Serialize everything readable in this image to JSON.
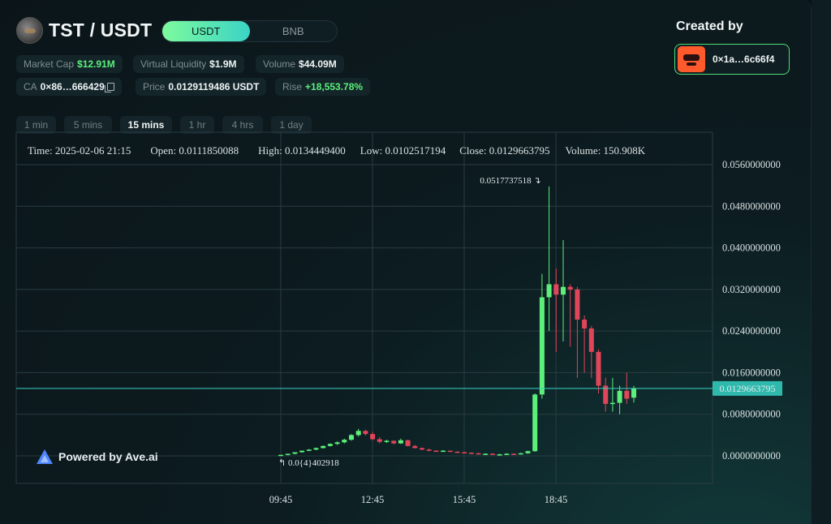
{
  "header": {
    "pair": "TST / USDT",
    "quote_options": [
      "USDT",
      "BNB"
    ],
    "active_quote": "USDT"
  },
  "stats": {
    "market_cap_label": "Market Cap",
    "market_cap": "$12.91M",
    "virtual_liquidity_label": "Virtual Liquidity",
    "virtual_liquidity": "$1.9M",
    "volume_label": "Volume",
    "volume": "$44.09M",
    "ca_label": "CA",
    "ca": "0×86…666429",
    "price_label": "Price",
    "price": "0.0129119486 USDT",
    "rise_label": "Rise",
    "rise": "+18,553.78%"
  },
  "creator": {
    "title": "Created by",
    "address": "0×1a…6c66f4"
  },
  "timeframes": [
    "1 min",
    "5 mins",
    "15 mins",
    "1 hr",
    "4 hrs",
    "1 day"
  ],
  "active_timeframe": "15 mins",
  "ohlc": {
    "time": "Time: 2025-02-06 21:15",
    "open": "Open: 0.0111850088",
    "high": "High: 0.0134449400",
    "low": "Low: 0.0102517194",
    "close": "Close: 0.0129663795",
    "volume": "Volume: 150.908K"
  },
  "powered_by": "Powered by Ave.ai",
  "colors": {
    "up": "#5cf07a",
    "down": "#e0455a",
    "accent": "#3bd3c6"
  },
  "chart_data": {
    "type": "candlestick",
    "interval": "15 mins",
    "y_ticks": [
      "0.0560000000",
      "0.0480000000",
      "0.0400000000",
      "0.0320000000",
      "0.0240000000",
      "0.0160000000",
      "0.0080000000",
      "0.0000000000"
    ],
    "ylim": [
      0,
      0.056
    ],
    "x_ticks": [
      "09:45",
      "12:45",
      "15:45",
      "18:45"
    ],
    "last_price_label": "0.0129663795",
    "last_price": 0.0129663795,
    "max_label": "0.0517737518",
    "max_value": 0.0517737518,
    "min_label": "0.0{4}402918",
    "min_value": 4.02918e-05,
    "candles": [
      {
        "o": 4e-05,
        "h": 0.0002,
        "l": 4e-05,
        "c": 0.0002
      },
      {
        "o": 0.0002,
        "h": 0.0004,
        "l": 0.0001,
        "c": 0.0004
      },
      {
        "o": 0.0004,
        "h": 0.0007,
        "l": 0.0003,
        "c": 0.0007
      },
      {
        "o": 0.0007,
        "h": 0.001,
        "l": 0.0006,
        "c": 0.001
      },
      {
        "o": 0.001,
        "h": 0.0013,
        "l": 0.0009,
        "c": 0.0012
      },
      {
        "o": 0.0012,
        "h": 0.0016,
        "l": 0.0011,
        "c": 0.0015
      },
      {
        "o": 0.0015,
        "h": 0.002,
        "l": 0.0014,
        "c": 0.0019
      },
      {
        "o": 0.0019,
        "h": 0.0024,
        "l": 0.0018,
        "c": 0.0023
      },
      {
        "o": 0.0023,
        "h": 0.0028,
        "l": 0.0021,
        "c": 0.0026
      },
      {
        "o": 0.0026,
        "h": 0.0033,
        "l": 0.0024,
        "c": 0.0031
      },
      {
        "o": 0.0031,
        "h": 0.0042,
        "l": 0.0029,
        "c": 0.004
      },
      {
        "o": 0.004,
        "h": 0.0052,
        "l": 0.0037,
        "c": 0.0048
      },
      {
        "o": 0.0048,
        "h": 0.005,
        "l": 0.0039,
        "c": 0.0042
      },
      {
        "o": 0.0042,
        "h": 0.0046,
        "l": 0.003,
        "c": 0.0032
      },
      {
        "o": 0.0032,
        "h": 0.0036,
        "l": 0.0024,
        "c": 0.0027
      },
      {
        "o": 0.0027,
        "h": 0.0031,
        "l": 0.0025,
        "c": 0.0029
      },
      {
        "o": 0.0029,
        "h": 0.003,
        "l": 0.0022,
        "c": 0.0024
      },
      {
        "o": 0.0024,
        "h": 0.0033,
        "l": 0.0023,
        "c": 0.003
      },
      {
        "o": 0.003,
        "h": 0.0031,
        "l": 0.0018,
        "c": 0.0019
      },
      {
        "o": 0.0019,
        "h": 0.0021,
        "l": 0.0014,
        "c": 0.0015
      },
      {
        "o": 0.0015,
        "h": 0.0016,
        "l": 0.0011,
        "c": 0.0012
      },
      {
        "o": 0.0012,
        "h": 0.0014,
        "l": 0.0009,
        "c": 0.001
      },
      {
        "o": 0.001,
        "h": 0.0011,
        "l": 0.0008,
        "c": 0.0009
      },
      {
        "o": 0.0009,
        "h": 0.0011,
        "l": 0.0008,
        "c": 0.001
      },
      {
        "o": 0.001,
        "h": 0.001,
        "l": 0.0007,
        "c": 0.0008
      },
      {
        "o": 0.0008,
        "h": 0.0009,
        "l": 0.0006,
        "c": 0.0007
      },
      {
        "o": 0.0007,
        "h": 0.0008,
        "l": 0.0005,
        "c": 0.0006
      },
      {
        "o": 0.0006,
        "h": 0.0007,
        "l": 0.0004,
        "c": 0.0005
      },
      {
        "o": 0.0005,
        "h": 0.0006,
        "l": 0.0003,
        "c": 0.0004
      },
      {
        "o": 0.0004,
        "h": 0.0005,
        "l": 0.0003,
        "c": 0.0004
      },
      {
        "o": 0.0004,
        "h": 0.0005,
        "l": 0.0002,
        "c": 0.0003
      },
      {
        "o": 0.0003,
        "h": 0.0004,
        "l": 0.0002,
        "c": 0.0003
      },
      {
        "o": 0.0003,
        "h": 0.0005,
        "l": 0.0002,
        "c": 0.0004
      },
      {
        "o": 0.0004,
        "h": 0.0005,
        "l": 0.0002,
        "c": 0.0003
      },
      {
        "o": 0.0003,
        "h": 0.0006,
        "l": 0.0003,
        "c": 0.0005
      },
      {
        "o": 0.0005,
        "h": 0.001,
        "l": 0.0004,
        "c": 0.0009
      },
      {
        "o": 0.0009,
        "h": 0.012,
        "l": 0.0008,
        "c": 0.0118
      },
      {
        "o": 0.0118,
        "h": 0.035,
        "l": 0.011,
        "c": 0.0305
      },
      {
        "o": 0.0305,
        "h": 0.0518,
        "l": 0.024,
        "c": 0.033
      },
      {
        "o": 0.033,
        "h": 0.036,
        "l": 0.02,
        "c": 0.031
      },
      {
        "o": 0.031,
        "h": 0.0415,
        "l": 0.022,
        "c": 0.0325
      },
      {
        "o": 0.0325,
        "h": 0.033,
        "l": 0.021,
        "c": 0.032
      },
      {
        "o": 0.032,
        "h": 0.0325,
        "l": 0.015,
        "c": 0.0262
      },
      {
        "o": 0.0262,
        "h": 0.027,
        "l": 0.016,
        "c": 0.0245
      },
      {
        "o": 0.0245,
        "h": 0.025,
        "l": 0.015,
        "c": 0.02
      },
      {
        "o": 0.02,
        "h": 0.0205,
        "l": 0.012,
        "c": 0.0135
      },
      {
        "o": 0.0135,
        "h": 0.015,
        "l": 0.0085,
        "c": 0.01
      },
      {
        "o": 0.01,
        "h": 0.015,
        "l": 0.0085,
        "c": 0.0102
      },
      {
        "o": 0.0102,
        "h": 0.0135,
        "l": 0.008,
        "c": 0.0125
      },
      {
        "o": 0.0125,
        "h": 0.016,
        "l": 0.01,
        "c": 0.011
      },
      {
        "o": 0.0111850088,
        "h": 0.01344494,
        "l": 0.0102517194,
        "c": 0.0129663795
      }
    ]
  }
}
